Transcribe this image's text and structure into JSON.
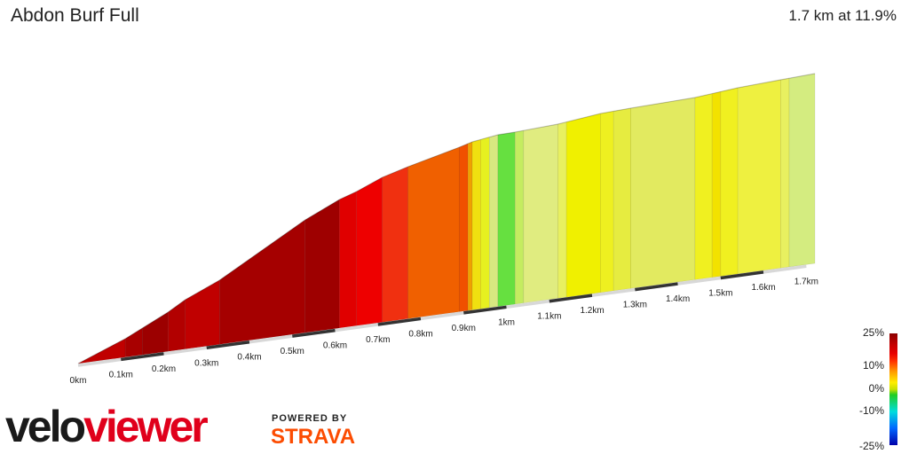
{
  "header": {
    "title": "Abdon Burf Full",
    "summary": "1.7 km at 11.9%"
  },
  "chart_data": {
    "type": "area",
    "title": "Abdon Burf Full",
    "summary": "1.7 km at 11.9%",
    "x_unit": "km",
    "x_ticks": [
      "0km",
      "0.1km",
      "0.2km",
      "0.3km",
      "0.4km",
      "0.5km",
      "0.6km",
      "0.7km",
      "0.8km",
      "0.9km",
      "1km",
      "1.1km",
      "1.2km",
      "1.3km",
      "1.4km",
      "1.5km",
      "1.6km",
      "1.7km"
    ],
    "segments": [
      {
        "from": 0.0,
        "to": 0.11,
        "color": "#c00000"
      },
      {
        "from": 0.11,
        "to": 0.15,
        "color": "#a80000"
      },
      {
        "from": 0.15,
        "to": 0.21,
        "color": "#9c0000"
      },
      {
        "from": 0.21,
        "to": 0.25,
        "color": "#b20000"
      },
      {
        "from": 0.25,
        "to": 0.33,
        "color": "#c00000"
      },
      {
        "from": 0.33,
        "to": 0.53,
        "color": "#a50000"
      },
      {
        "from": 0.53,
        "to": 0.61,
        "color": "#9e0000"
      },
      {
        "from": 0.61,
        "to": 0.65,
        "color": "#e00000"
      },
      {
        "from": 0.65,
        "to": 0.71,
        "color": "#ee0000"
      },
      {
        "from": 0.71,
        "to": 0.77,
        "color": "#f03010"
      },
      {
        "from": 0.77,
        "to": 0.89,
        "color": "#f06000"
      },
      {
        "from": 0.89,
        "to": 0.91,
        "color": "#f05000"
      },
      {
        "from": 0.91,
        "to": 0.92,
        "color": "#f0a000"
      },
      {
        "from": 0.92,
        "to": 0.94,
        "color": "#f0e010"
      },
      {
        "from": 0.94,
        "to": 0.96,
        "color": "#e6f020"
      },
      {
        "from": 0.96,
        "to": 0.98,
        "color": "#d8e880"
      },
      {
        "from": 0.98,
        "to": 1.02,
        "color": "#66e040"
      },
      {
        "from": 1.02,
        "to": 1.04,
        "color": "#c4ec60"
      },
      {
        "from": 1.04,
        "to": 1.12,
        "color": "#e0ec80"
      },
      {
        "from": 1.12,
        "to": 1.14,
        "color": "#e8f060"
      },
      {
        "from": 1.14,
        "to": 1.22,
        "color": "#f0f000"
      },
      {
        "from": 1.22,
        "to": 1.25,
        "color": "#eef020"
      },
      {
        "from": 1.25,
        "to": 1.29,
        "color": "#e6ec40"
      },
      {
        "from": 1.29,
        "to": 1.44,
        "color": "#e2ea60"
      },
      {
        "from": 1.44,
        "to": 1.48,
        "color": "#f0f020"
      },
      {
        "from": 1.48,
        "to": 1.5,
        "color": "#f2e200"
      },
      {
        "from": 1.5,
        "to": 1.54,
        "color": "#f0f020"
      },
      {
        "from": 1.54,
        "to": 1.64,
        "color": "#eef040"
      },
      {
        "from": 1.64,
        "to": 1.66,
        "color": "#e8f060"
      },
      {
        "from": 1.66,
        "to": 1.72,
        "color": "#d4ec80"
      }
    ]
  },
  "legend": {
    "labels": [
      "25%",
      "10%",
      "0%",
      "-10%",
      "-25%"
    ],
    "scale_colors": [
      "#8b0000",
      "#e80000",
      "#ff9900",
      "#ffee00",
      "#22cc22",
      "#00dddd",
      "#0066ff",
      "#0000aa"
    ]
  },
  "branding": {
    "logo_text_left": "velo",
    "logo_text_right": "viewer",
    "powered": "POWERED BY",
    "strava": "STRAVA",
    "logo_dark": "#1a1a1a",
    "logo_red": "#e0001b",
    "strava_orange": "#fc4c02"
  }
}
